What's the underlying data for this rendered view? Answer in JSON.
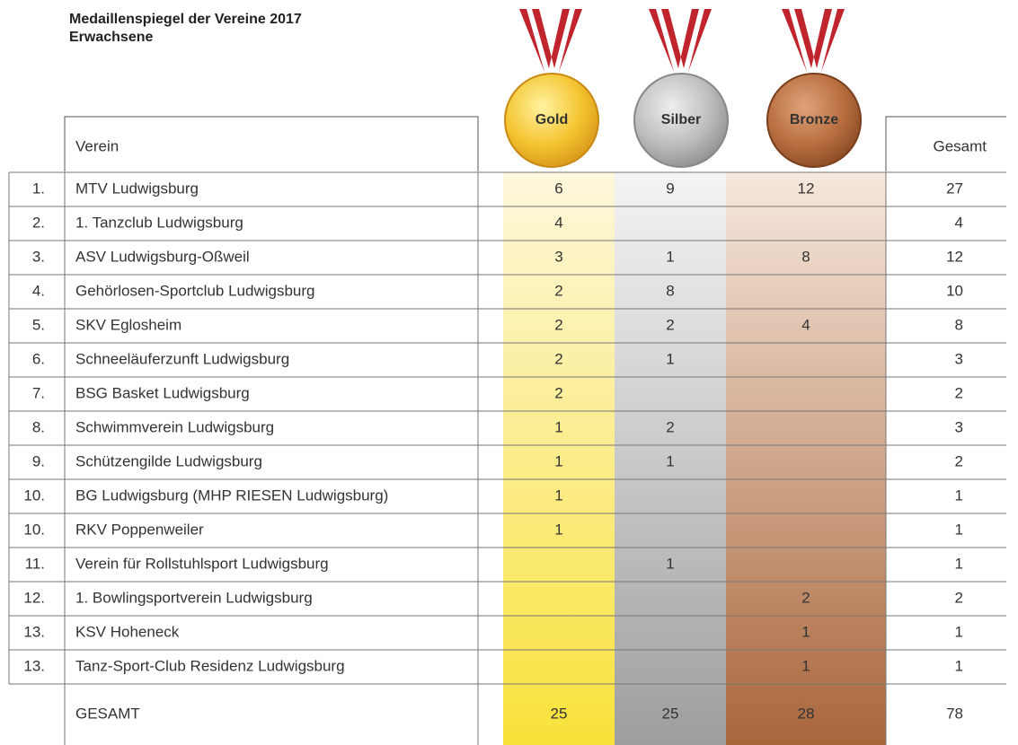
{
  "header": {
    "title": "Medaillenspiegel der Vereine 2017",
    "subtitle": "Erwachsene"
  },
  "table": {
    "columns": {
      "club": "Verein",
      "gold": "Gold",
      "silver": "Silber",
      "bronze": "Bronze",
      "total": "Gesamt"
    },
    "rows": [
      {
        "rank": "1.",
        "club": "MTV Ludwigsburg",
        "gold": 6,
        "silver": 9,
        "bronze": 12,
        "total": 27
      },
      {
        "rank": "2.",
        "club": "1. Tanzclub Ludwigsburg",
        "gold": 4,
        "silver": null,
        "bronze": null,
        "total": 4
      },
      {
        "rank": "3.",
        "club": "ASV Ludwigsburg-Oßweil",
        "gold": 3,
        "silver": 1,
        "bronze": 8,
        "total": 12
      },
      {
        "rank": "4.",
        "club": "Gehörlosen-Sportclub Ludwigsburg",
        "gold": 2,
        "silver": 8,
        "bronze": null,
        "total": 10
      },
      {
        "rank": "5.",
        "club": "SKV Eglosheim",
        "gold": 2,
        "silver": 2,
        "bronze": 4,
        "total": 8
      },
      {
        "rank": "6.",
        "club": "Schneeläuferzunft Ludwigsburg",
        "gold": 2,
        "silver": 1,
        "bronze": null,
        "total": 3
      },
      {
        "rank": "7.",
        "club": "BSG Basket Ludwigsburg",
        "gold": 2,
        "silver": null,
        "bronze": null,
        "total": 2
      },
      {
        "rank": "8.",
        "club": "Schwimmverein Ludwigsburg",
        "gold": 1,
        "silver": 2,
        "bronze": null,
        "total": 3
      },
      {
        "rank": "9.",
        "club": "Schützengilde Ludwigsburg",
        "gold": 1,
        "silver": 1,
        "bronze": null,
        "total": 2
      },
      {
        "rank": "10.",
        "club": "BG Ludwigsburg (MHP RIESEN Ludwigsburg)",
        "gold": 1,
        "silver": null,
        "bronze": null,
        "total": 1
      },
      {
        "rank": "10.",
        "club": "RKV Poppenweiler",
        "gold": 1,
        "silver": null,
        "bronze": null,
        "total": 1
      },
      {
        "rank": "11.",
        "club": "Verein für Rollstuhlsport Ludwigsburg",
        "gold": null,
        "silver": 1,
        "bronze": null,
        "total": 1
      },
      {
        "rank": "12.",
        "club": "1. Bowlingsportverein Ludwigsburg",
        "gold": null,
        "silver": null,
        "bronze": 2,
        "total": 2
      },
      {
        "rank": "13.",
        "club": "KSV Hoheneck",
        "gold": null,
        "silver": null,
        "bronze": 1,
        "total": 1
      },
      {
        "rank": "13.",
        "club": "Tanz-Sport-Club Residenz Ludwigsburg",
        "gold": null,
        "silver": null,
        "bronze": 1,
        "total": 1
      }
    ],
    "totals": {
      "label": "GESAMT",
      "gold": 25,
      "silver": 25,
      "bronze": 28,
      "total": 78
    }
  }
}
